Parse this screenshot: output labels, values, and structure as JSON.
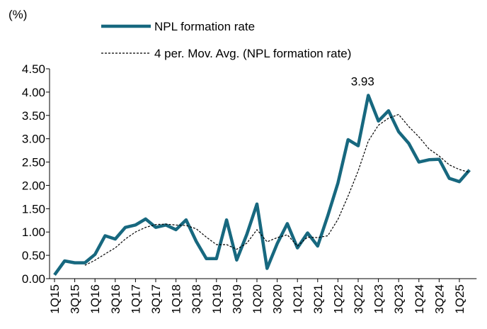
{
  "chart_data": {
    "type": "line",
    "y_label": "(%)",
    "categories": [
      "1Q15",
      null,
      "3Q15",
      null,
      "1Q16",
      null,
      "3Q16",
      null,
      "1Q17",
      null,
      "3Q17",
      null,
      "1Q18",
      null,
      "3Q18",
      null,
      "1Q19",
      null,
      "3Q19",
      null,
      "1Q20",
      null,
      "3Q20",
      null,
      "1Q21",
      null,
      "3Q21",
      null,
      "1Q22",
      null,
      "3Q22",
      null,
      "1Q23",
      null,
      "3Q23",
      null,
      "1Q24",
      null,
      "3Q24",
      null,
      "1Q25",
      null
    ],
    "series": [
      {
        "name": "NPL formation rate",
        "color": "#17687f",
        "dashed": false,
        "values": [
          0.08,
          0.38,
          0.34,
          0.34,
          0.52,
          0.92,
          0.85,
          1.1,
          1.15,
          1.28,
          1.1,
          1.15,
          1.05,
          1.26,
          0.8,
          0.43,
          0.43,
          1.26,
          0.4,
          0.95,
          1.6,
          0.22,
          0.75,
          1.18,
          0.66,
          0.98,
          0.7,
          1.35,
          2.05,
          2.98,
          2.85,
          3.93,
          3.38,
          3.6,
          3.15,
          2.9,
          2.5,
          2.55,
          2.56,
          2.15,
          2.08,
          2.33
        ],
        "value_labels": [
          null,
          null,
          null,
          null,
          null,
          null,
          null,
          null,
          null,
          null,
          null,
          null,
          null,
          null,
          null,
          null,
          null,
          null,
          null,
          null,
          null,
          null,
          null,
          null,
          null,
          null,
          null,
          null,
          null,
          null,
          null,
          "3.93",
          null,
          null,
          null,
          null,
          null,
          null,
          null,
          null,
          null,
          null
        ]
      },
      {
        "name": "4 per. Mov. Avg. (NPL formation rate)",
        "color": "#000000",
        "dashed": true,
        "values": [
          null,
          null,
          null,
          0.285,
          0.395,
          0.53,
          0.66,
          0.85,
          1.0,
          1.1,
          1.16,
          1.17,
          1.15,
          1.14,
          1.07,
          0.89,
          0.73,
          0.73,
          0.63,
          0.76,
          1.05,
          0.79,
          0.88,
          0.94,
          0.7,
          0.89,
          0.88,
          0.92,
          1.27,
          1.77,
          2.31,
          2.95,
          3.29,
          3.44,
          3.52,
          3.26,
          3.04,
          2.78,
          2.63,
          2.44,
          2.34,
          2.28
        ]
      }
    ],
    "ylim": [
      0,
      4.5
    ],
    "yticks": [
      {
        "value": 0,
        "label": "0.00"
      },
      {
        "value": 0.5,
        "label": "0.50"
      },
      {
        "value": 1,
        "label": "1.00"
      },
      {
        "value": 1.5,
        "label": "1.50"
      },
      {
        "value": 2,
        "label": "2.00"
      },
      {
        "value": 2.5,
        "label": "2.50"
      },
      {
        "value": 3,
        "label": "3.00"
      },
      {
        "value": 3.5,
        "label": "3.50"
      },
      {
        "value": 4,
        "label": "4.00"
      },
      {
        "value": 4.5,
        "label": "4.50"
      }
    ],
    "grid": false
  }
}
